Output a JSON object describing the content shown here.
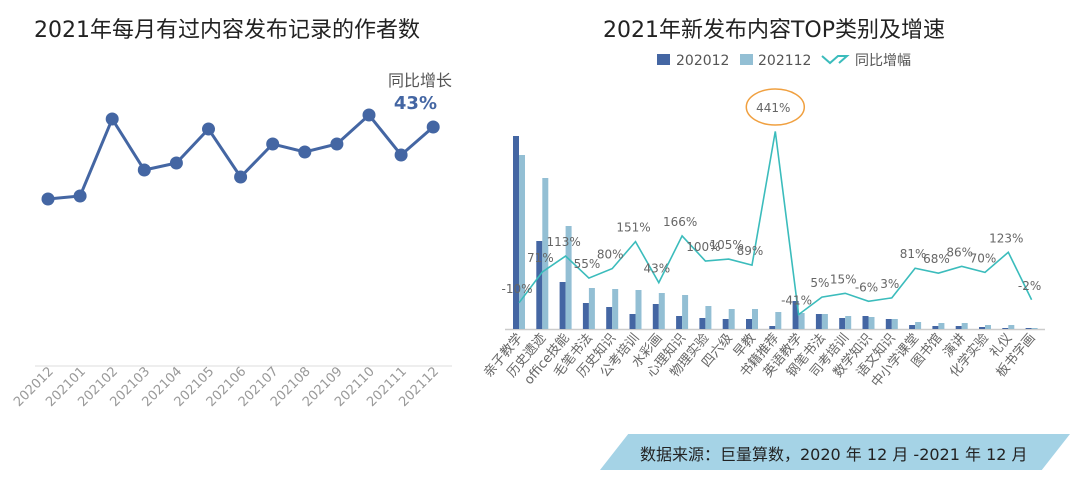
{
  "left_chart_title": "2021年每月有过内容发布记录的作者数",
  "right_chart_title": "2021年新发布内容TOP类别及增速",
  "source_note": "数据来源：巨量算数，2020 年 12 月 -2021 年 12 月",
  "chart_data": [
    {
      "type": "line",
      "title": "2021年每月有过内容发布记录的作者数",
      "categories": [
        "202012",
        "202101",
        "202102",
        "202103",
        "202104",
        "202105",
        "202106",
        "202107",
        "202108",
        "202109",
        "202110",
        "202111",
        "202112"
      ],
      "values": [
        41,
        44,
        121,
        70,
        77,
        111,
        63,
        96,
        88,
        96,
        125,
        85,
        113
      ],
      "value_note": "no y-axis printed; relative values",
      "annotation": {
        "label": "同比增长",
        "value": "43%"
      },
      "color": "#4466a3",
      "grid": false
    },
    {
      "type": "bar+line",
      "title": "2021年新发布内容TOP类别及增速",
      "categories": [
        "亲子教学",
        "历史遗迹",
        "office技能",
        "毛笔书法",
        "历史知识",
        "公考培训",
        "水彩画",
        "心理知识",
        "物理实验",
        "四六级",
        "早教",
        "书籍推荐",
        "英语教学",
        "钢笔书法",
        "司考培训",
        "数学知识",
        "语文知识",
        "中小学课堂",
        "图书馆",
        "演讲",
        "化学实验",
        "礼仪",
        "板书字画"
      ],
      "series": [
        {
          "name": "202012",
          "type": "bar",
          "color": "#4466a3",
          "values": [
            193,
            88,
            47,
            26,
            22,
            15,
            25,
            13,
            11,
            10,
            10,
            3,
            28,
            15,
            11,
            13,
            10,
            4,
            3,
            3,
            2,
            1,
            1
          ]
        },
        {
          "name": "202112",
          "type": "bar",
          "color": "#93bfd4",
          "values": [
            174,
            151,
            103,
            41,
            40,
            39,
            36,
            34,
            23,
            20,
            20,
            17,
            16,
            15,
            13,
            12,
            10,
            7,
            6,
            6,
            4,
            4,
            1
          ]
        },
        {
          "name": "同比增幅",
          "type": "line",
          "color": "#3bbcbc",
          "values": [
            -10,
            71,
            113,
            55,
            80,
            151,
            43,
            166,
            100,
            105,
            89,
            441,
            -41,
            5,
            15,
            -6,
            3,
            81,
            68,
            86,
            70,
            123,
            -2
          ],
          "labels": [
            "-10%",
            "71%",
            "113%",
            "55%",
            "80%",
            "151%",
            "43%",
            "166%",
            "100%",
            "105%",
            "89%",
            "441%",
            "-41%",
            "5%",
            "15%",
            "-6%",
            "3%",
            "81%",
            "68%",
            "86%",
            "70%",
            "123%",
            "-2%"
          ]
        }
      ],
      "highlight": {
        "label": "441%",
        "color": "#f0a040"
      },
      "legend": "top",
      "grid": false
    }
  ]
}
